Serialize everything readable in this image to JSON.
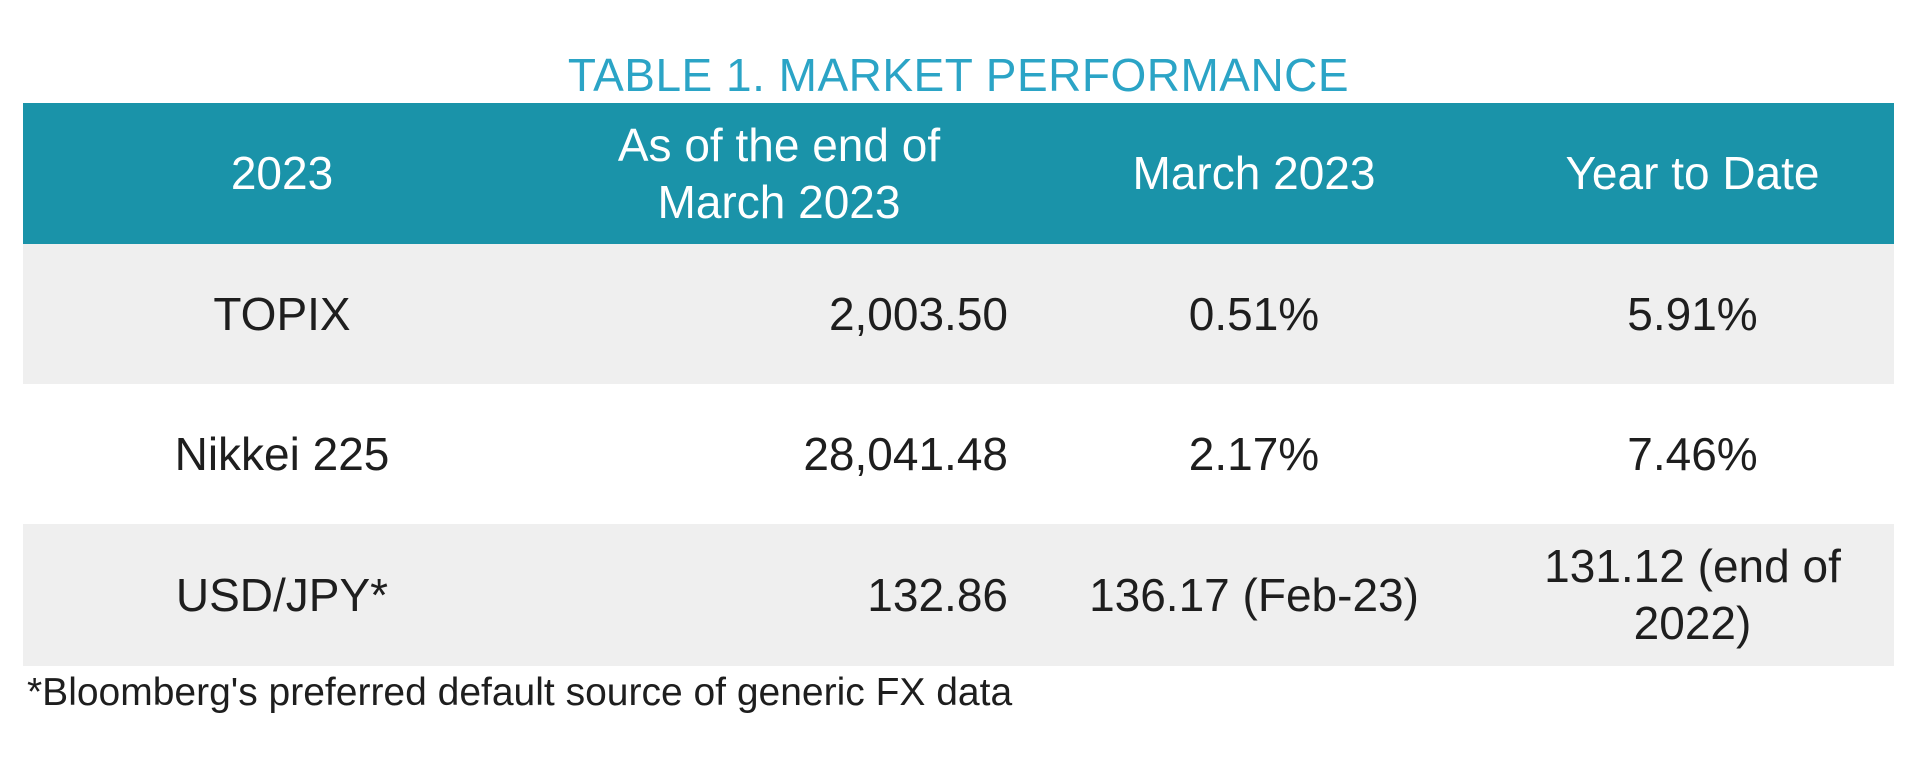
{
  "title": "TABLE 1. MARKET PERFORMANCE",
  "table": {
    "columns": [
      {
        "label": "2023"
      },
      {
        "label": "As of the end of March 2023"
      },
      {
        "label": "March 2023"
      },
      {
        "label": "Year to Date"
      }
    ],
    "rows": [
      {
        "name": "TOPIX",
        "end_of_march": "2,003.50",
        "march": "0.51%",
        "ytd": "5.91%"
      },
      {
        "name": "Nikkei 225",
        "end_of_march": "28,041.48",
        "march": "2.17%",
        "ytd": "7.46%"
      },
      {
        "name": "USD/JPY*",
        "end_of_march": "132.86",
        "march": "136.17 (Feb-23)",
        "ytd": "131.12 (end of 2022)"
      }
    ]
  },
  "footnote": "*Bloomberg's preferred default source of generic FX data",
  "colors": {
    "header_background": "#1a93a9",
    "title_text": "#2ba4c6",
    "stripe_row": "#efefef",
    "body_text": "#1e1e1e",
    "header_text": "#ffffff"
  }
}
